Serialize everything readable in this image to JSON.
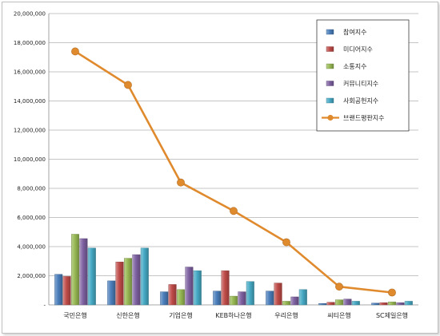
{
  "chart_data": {
    "type": "bar",
    "categories": [
      "국민은행",
      "신한은행",
      "기업은행",
      "KEB하나은행",
      "우리은행",
      "씨티은행",
      "SC제일은행"
    ],
    "ylim": [
      0,
      20000000
    ],
    "ytick_values": [
      0,
      2000000,
      4000000,
      6000000,
      8000000,
      10000000,
      12000000,
      14000000,
      16000000,
      18000000,
      20000000
    ],
    "ytick_labels": [
      "-",
      "2,000,000",
      "4,000,000",
      "6,000,000",
      "8,000,000",
      "10,000,000",
      "12,000,000",
      "14,000,000",
      "16,000,000",
      "18,000,000",
      "20,000,000"
    ],
    "grid": true,
    "legend_position": "top-right",
    "series": [
      {
        "name": "참여지수",
        "type": "bar",
        "color": "#4a7ebb",
        "values": [
          2100000,
          1650000,
          900000,
          950000,
          950000,
          100000,
          120000
        ]
      },
      {
        "name": "미디어지수",
        "type": "bar",
        "color": "#be4b48",
        "values": [
          1950000,
          2950000,
          1400000,
          2350000,
          1500000,
          180000,
          150000
        ]
      },
      {
        "name": "소통지수",
        "type": "bar",
        "color": "#98b954",
        "values": [
          4850000,
          3200000,
          1050000,
          600000,
          250000,
          350000,
          200000
        ]
      },
      {
        "name": "커뮤니티지수",
        "type": "bar",
        "color": "#7d60a0",
        "values": [
          4550000,
          3450000,
          2600000,
          900000,
          550000,
          400000,
          150000
        ]
      },
      {
        "name": "사회공헌지수",
        "type": "bar",
        "color": "#46aac5",
        "values": [
          3900000,
          3900000,
          2350000,
          1600000,
          1050000,
          250000,
          250000
        ]
      },
      {
        "name": "브랜드평판지수",
        "type": "line",
        "color": "#e08a2e",
        "values": [
          17400000,
          15100000,
          8400000,
          6450000,
          4300000,
          1250000,
          850000
        ]
      }
    ]
  }
}
